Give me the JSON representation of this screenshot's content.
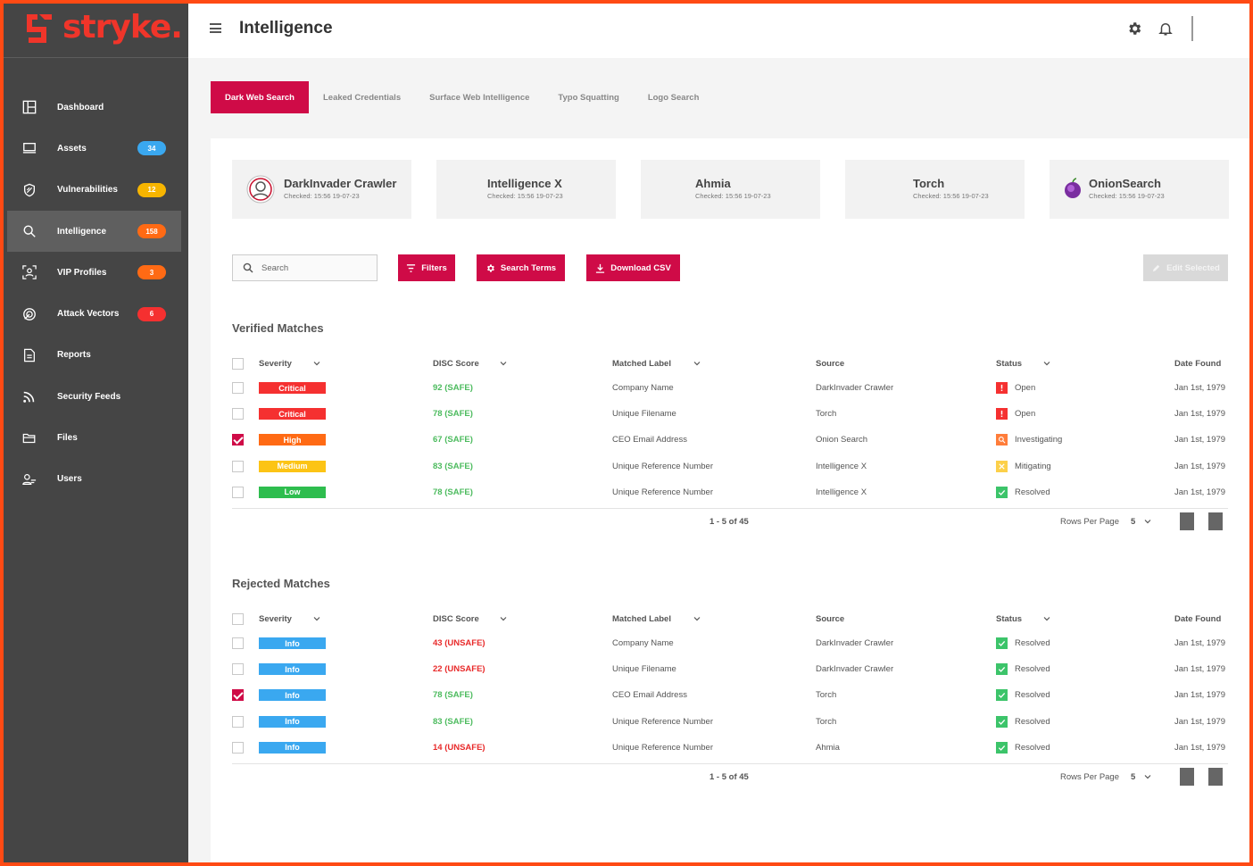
{
  "app": {
    "brand": "stryke."
  },
  "header": {
    "title": "Intelligence"
  },
  "sidebar": {
    "items": [
      {
        "label": "Dashboard",
        "icon": "dashboard-icon",
        "badge": null,
        "active": false
      },
      {
        "label": "Assets",
        "icon": "monitor-icon",
        "badge": "34",
        "badge_color": "#3aa8f0",
        "active": false
      },
      {
        "label": "Vulnerabilities",
        "icon": "shield-icon",
        "badge": "12",
        "badge_color": "#f7b500",
        "active": false
      },
      {
        "label": "Intelligence",
        "icon": "search-icon",
        "badge": "158",
        "badge_color": "#ff6a14",
        "active": true
      },
      {
        "label": "VIP Profiles",
        "icon": "person-scan-icon",
        "badge": "3",
        "badge_color": "#ff6a14",
        "active": false
      },
      {
        "label": "Attack Vectors",
        "icon": "radar-icon",
        "badge": "6",
        "badge_color": "#f53030",
        "active": false
      },
      {
        "label": "Reports",
        "icon": "document-icon",
        "badge": null,
        "active": false
      },
      {
        "label": "Security Feeds",
        "icon": "rss-icon",
        "badge": null,
        "active": false
      },
      {
        "label": "Files",
        "icon": "folder-icon",
        "badge": null,
        "active": false
      },
      {
        "label": "Users",
        "icon": "users-icon",
        "badge": null,
        "active": false
      }
    ]
  },
  "tabs": [
    {
      "label": "Dark Web Search",
      "active": true
    },
    {
      "label": "Leaked Credentials",
      "active": false
    },
    {
      "label": "Surface Web Intelligence",
      "active": false
    },
    {
      "label": "Typo Squatting",
      "active": false
    },
    {
      "label": "Logo Search",
      "active": false
    }
  ],
  "sources": [
    {
      "name": "DarkInvader Crawler",
      "checked": "Checked: 15:56 19-07-23",
      "icon": "darkinvader-logo-icon"
    },
    {
      "name": "Intelligence X",
      "checked": "Checked: 15:56 19-07-23",
      "icon": null
    },
    {
      "name": "Ahmia",
      "checked": "Checked: 15:56 19-07-23",
      "icon": null
    },
    {
      "name": "Torch",
      "checked": "Checked: 15:56 19-07-23",
      "icon": null
    },
    {
      "name": "OnionSearch",
      "checked": "Checked: 15:56 19-07-23",
      "icon": "onion-logo-icon"
    }
  ],
  "toolbar": {
    "search_placeholder": "Search",
    "filters_label": "Filters",
    "search_terms_label": "Search Terms",
    "download_label": "Download CSV",
    "edit_selected_label": "Edit Selected"
  },
  "columns": {
    "severity": "Severity",
    "score": "DISC Score",
    "label": "Matched Label",
    "source": "Source",
    "status": "Status",
    "date": "Date Found"
  },
  "colors": {
    "accent": "#cf0b47",
    "critical": "#f53030",
    "high": "#ff6a14",
    "medium": "#fcc415",
    "low": "#2ebd4e",
    "info": "#3aa8f0",
    "safe": "#4cbb5e",
    "unsafe": "#e82a2a"
  },
  "verified": {
    "title": "Verified Matches",
    "rows": [
      {
        "checked": false,
        "severity": "Critical",
        "sev_color": "#f53030",
        "score": "92 (SAFE)",
        "score_color": "#4cbb5e",
        "label": "Company Name",
        "source": "DarkInvader Crawler",
        "status": "Open",
        "status_icon": "alert-icon",
        "status_color": "#f53030",
        "date": "Jan 1st, 1979"
      },
      {
        "checked": false,
        "severity": "Critical",
        "sev_color": "#f53030",
        "score": "78 (SAFE)",
        "score_color": "#4cbb5e",
        "label": "Unique Filename",
        "source": "Torch",
        "status": "Open",
        "status_icon": "alert-icon",
        "status_color": "#f53030",
        "date": "Jan 1st, 1979"
      },
      {
        "checked": true,
        "severity": "High",
        "sev_color": "#ff6a14",
        "score": "67 (SAFE)",
        "score_color": "#4cbb5e",
        "label": "CEO Email Address",
        "source": "Onion Search",
        "status": "Investigating",
        "status_icon": "magnifier-icon",
        "status_color": "#ff7d3a",
        "date": "Jan 1st, 1979"
      },
      {
        "checked": false,
        "severity": "Medium",
        "sev_color": "#fcc415",
        "score": "83 (SAFE)",
        "score_color": "#4cbb5e",
        "label": "Unique Reference Number",
        "source": "Intelligence X",
        "status": "Mitigating",
        "status_icon": "cross-icon",
        "status_color": "#fcd04a",
        "date": "Jan 1st, 1979"
      },
      {
        "checked": false,
        "severity": "Low",
        "sev_color": "#2ebd4e",
        "score": "78 (SAFE)",
        "score_color": "#4cbb5e",
        "label": "Unique Reference Number",
        "source": "Intelligence X",
        "status": "Resolved",
        "status_icon": "check-icon",
        "status_color": "#3cc46a",
        "date": "Jan 1st, 1979"
      }
    ],
    "pagination": "1 - 5 of 45",
    "rows_per_page_label": "Rows Per Page",
    "rows_per_page": "5"
  },
  "rejected": {
    "title": "Rejected Matches",
    "rows": [
      {
        "checked": false,
        "severity": "Info",
        "sev_color": "#3aa8f0",
        "score": "43 (UNSAFE)",
        "score_color": "#e82a2a",
        "label": "Company Name",
        "source": "DarkInvader Crawler",
        "status": "Resolved",
        "status_icon": "check-icon",
        "status_color": "#3cc46a",
        "date": "Jan 1st, 1979"
      },
      {
        "checked": false,
        "severity": "Info",
        "sev_color": "#3aa8f0",
        "score": "22 (UNSAFE)",
        "score_color": "#e82a2a",
        "label": "Unique Filename",
        "source": "DarkInvader Crawler",
        "status": "Resolved",
        "status_icon": "check-icon",
        "status_color": "#3cc46a",
        "date": "Jan 1st, 1979"
      },
      {
        "checked": true,
        "severity": "Info",
        "sev_color": "#3aa8f0",
        "score": "78 (SAFE)",
        "score_color": "#4cbb5e",
        "label": "CEO Email Address",
        "source": "Torch",
        "status": "Resolved",
        "status_icon": "check-icon",
        "status_color": "#3cc46a",
        "date": "Jan 1st, 1979"
      },
      {
        "checked": false,
        "severity": "Info",
        "sev_color": "#3aa8f0",
        "score": "83 (SAFE)",
        "score_color": "#4cbb5e",
        "label": "Unique Reference Number",
        "source": "Torch",
        "status": "Resolved",
        "status_icon": "check-icon",
        "status_color": "#3cc46a",
        "date": "Jan 1st, 1979"
      },
      {
        "checked": false,
        "severity": "Info",
        "sev_color": "#3aa8f0",
        "score": "14 (UNSAFE)",
        "score_color": "#e82a2a",
        "label": "Unique Reference Number",
        "source": "Ahmia",
        "status": "Resolved",
        "status_icon": "check-icon",
        "status_color": "#3cc46a",
        "date": "Jan 1st, 1979"
      }
    ],
    "pagination": "1 - 5 of 45",
    "rows_per_page_label": "Rows Per Page",
    "rows_per_page": "5"
  }
}
